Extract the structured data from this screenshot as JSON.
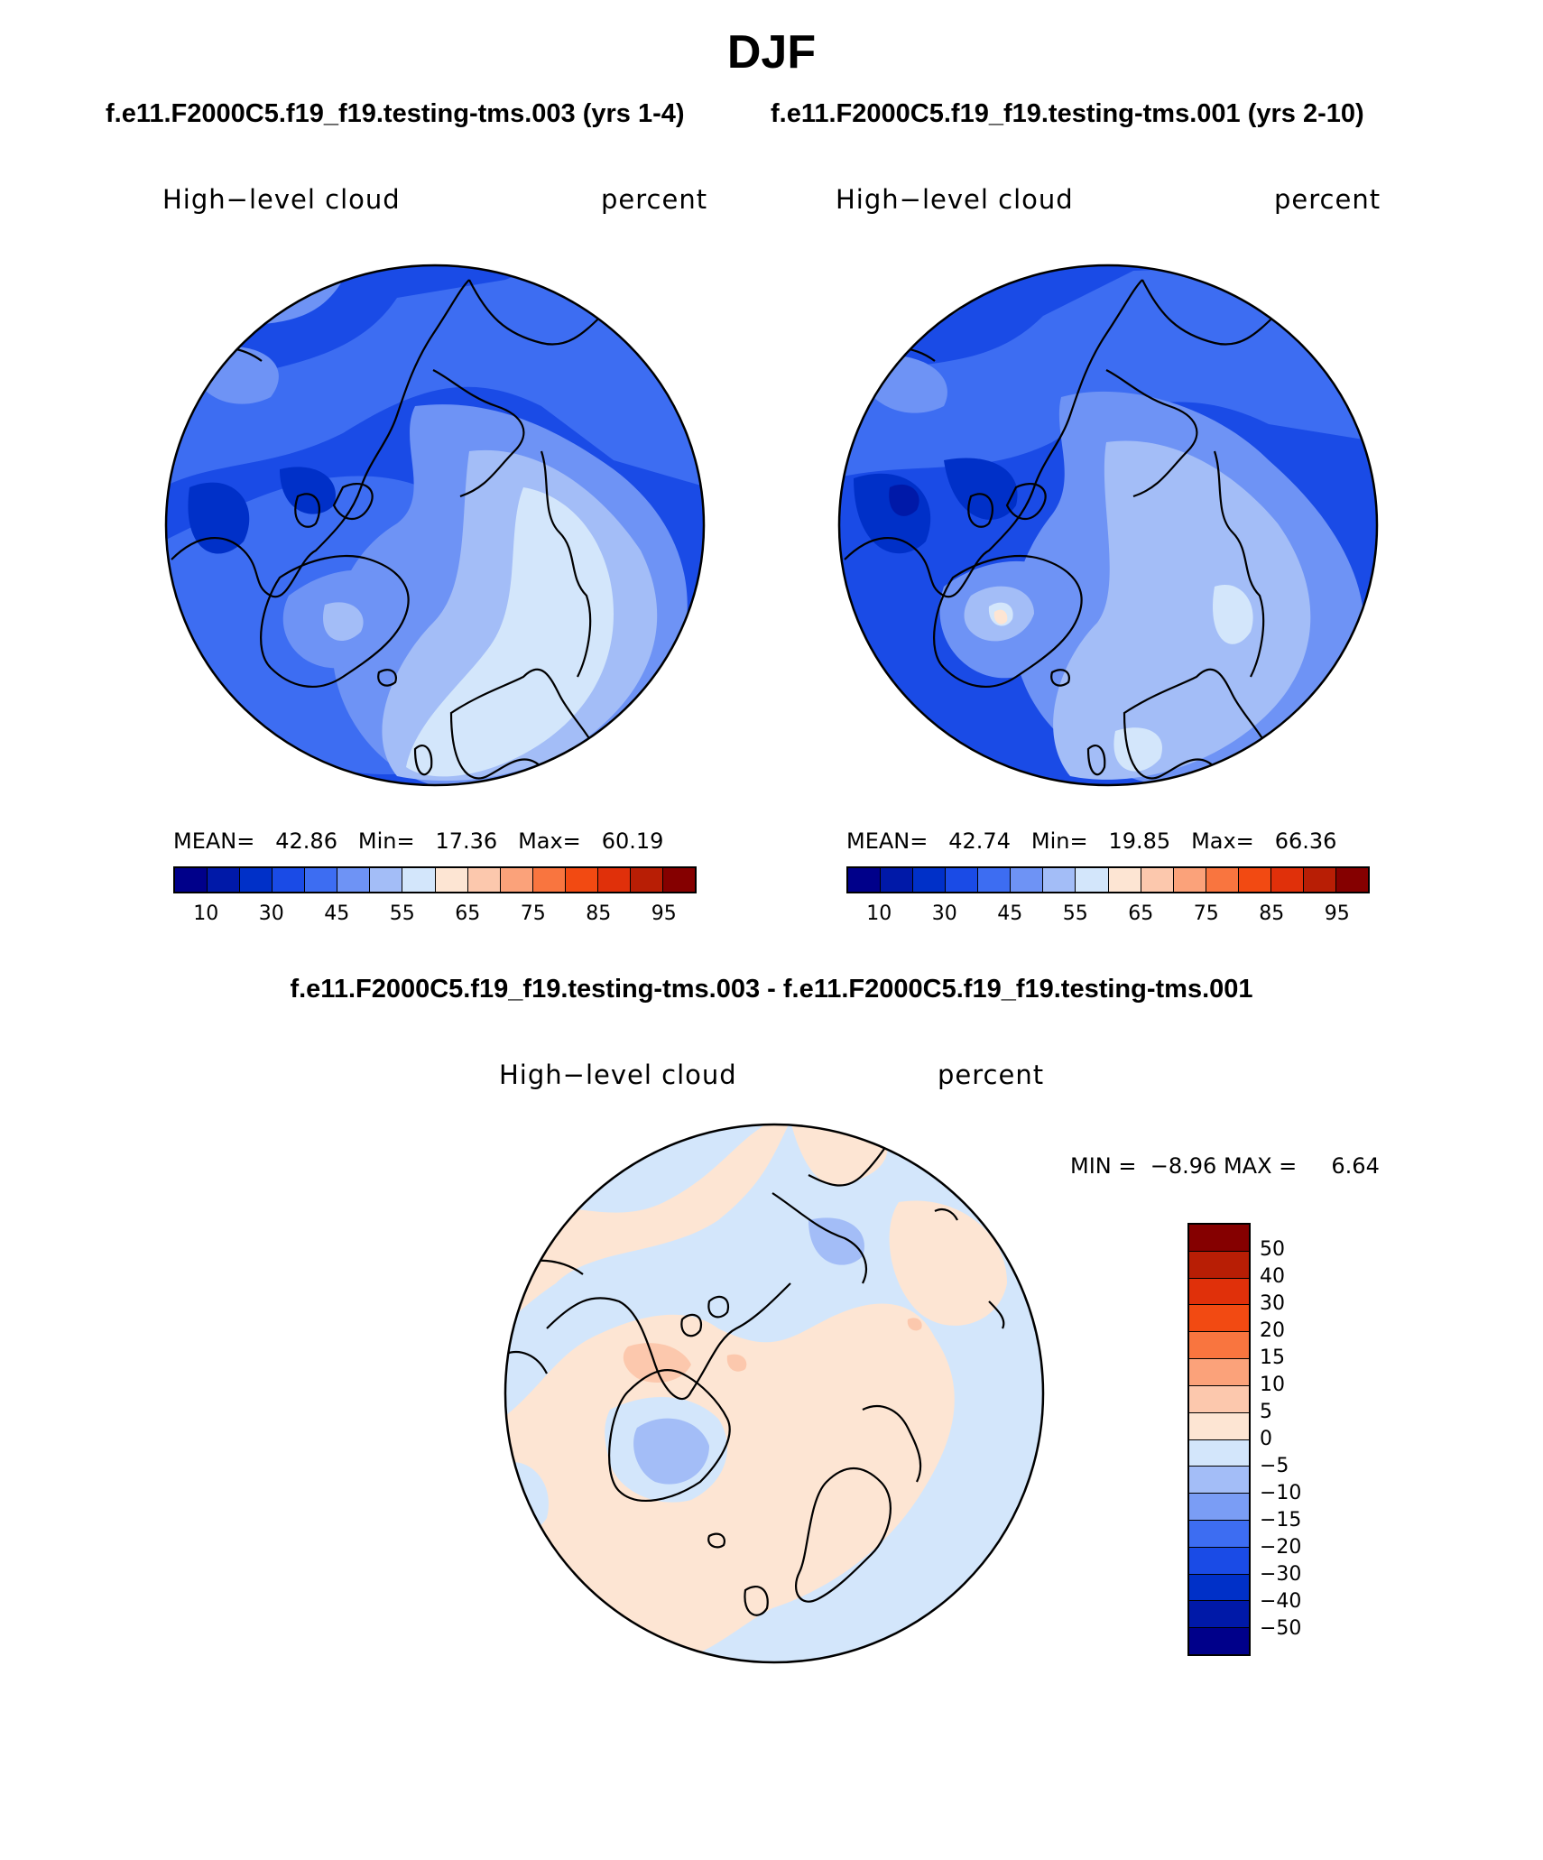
{
  "title": "DJF",
  "panels": [
    {
      "case_title": "f.e11.F2000C5.f19_f19.testing-tms.003 (yrs 1-4)",
      "variable": "High−level cloud",
      "units": "percent",
      "mean_label": "MEAN=",
      "mean_value": "42.86",
      "min_label": "Min=",
      "min_value": "17.36",
      "max_label": "Max=",
      "max_value": "60.19"
    },
    {
      "case_title": "f.e11.F2000C5.f19_f19.testing-tms.001 (yrs 2-10)",
      "variable": "High−level cloud",
      "units": "percent",
      "mean_label": "MEAN=",
      "mean_value": "42.74",
      "min_label": "Min=",
      "min_value": "19.85",
      "max_label": "Max=",
      "max_value": "66.36"
    }
  ],
  "colorbar": {
    "colors": [
      "#00008a",
      "#0019a8",
      "#0030c8",
      "#1a4be6",
      "#3d6df2",
      "#6e93f5",
      "#a3bdf7",
      "#d3e6fb",
      "#fde5d3",
      "#fcc8ad",
      "#fba27a",
      "#f9753f",
      "#f24a12",
      "#e0300a",
      "#b81e05",
      "#850000"
    ],
    "tick_labels": [
      "10",
      "30",
      "45",
      "55",
      "65",
      "75",
      "85",
      "95"
    ]
  },
  "difference": {
    "title": "f.e11.F2000C5.f19_f19.testing-tms.003 - f.e11.F2000C5.f19_f19.testing-tms.001",
    "variable": "High−level cloud",
    "units": "percent",
    "min_label": "MIN =",
    "min_value": "−8.96",
    "max_label": "MAX =",
    "max_value": "6.64",
    "colorbar_colors": [
      "#850000",
      "#b81e05",
      "#e0300a",
      "#f24a12",
      "#f9753f",
      "#fba27a",
      "#fcc8ad",
      "#fde5d3",
      "#d3e6fb",
      "#a3bdf7",
      "#7a9df5",
      "#3d6df2",
      "#1a4be6",
      "#0030c8",
      "#0019a8",
      "#00008a"
    ],
    "tick_labels": [
      "50",
      "40",
      "30",
      "20",
      "15",
      "10",
      "5",
      "0",
      "−5",
      "−10",
      "−15",
      "−20",
      "−30",
      "−40",
      "−50"
    ]
  }
}
